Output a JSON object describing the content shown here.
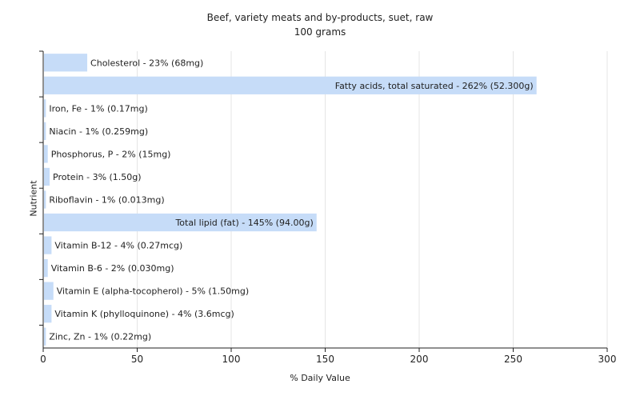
{
  "chart_data": {
    "type": "bar",
    "orientation": "horizontal",
    "title": "Beef, variety meats and by-products, suet, raw",
    "subtitle": "100 grams",
    "xlabel": "% Daily Value",
    "ylabel": "Nutrient",
    "xlim": [
      0,
      300
    ],
    "xticks": [
      0,
      50,
      100,
      150,
      200,
      250,
      300
    ],
    "grid": true,
    "bar_color": "#c6dcf8",
    "categories": [
      "Cholesterol",
      "Fatty acids, total saturated",
      "Iron, Fe",
      "Niacin",
      "Phosphorus, P",
      "Protein",
      "Riboflavin",
      "Total lipid (fat)",
      "Vitamin B-12",
      "Vitamin B-6",
      "Vitamin E (alpha-tocopherol)",
      "Vitamin K (phylloquinone)",
      "Zinc, Zn"
    ],
    "values": [
      23,
      262,
      1,
      1,
      2,
      3,
      1,
      145,
      4,
      2,
      5,
      4,
      1
    ],
    "labels": [
      "Cholesterol - 23% (68mg)",
      "Fatty acids, total saturated - 262% (52.300g)",
      "Iron, Fe - 1% (0.17mg)",
      "Niacin - 1% (0.259mg)",
      "Phosphorus, P - 2% (15mg)",
      "Protein - 3% (1.50g)",
      "Riboflavin - 1% (0.013mg)",
      "Total lipid (fat) - 145% (94.00g)",
      "Vitamin B-12 - 4% (0.27mcg)",
      "Vitamin B-6 - 2% (0.030mg)",
      "Vitamin E (alpha-tocopherol) - 5% (1.50mg)",
      "Vitamin K (phylloquinone) - 4% (3.6mcg)",
      "Zinc, Zn - 1% (0.22mg)"
    ]
  }
}
